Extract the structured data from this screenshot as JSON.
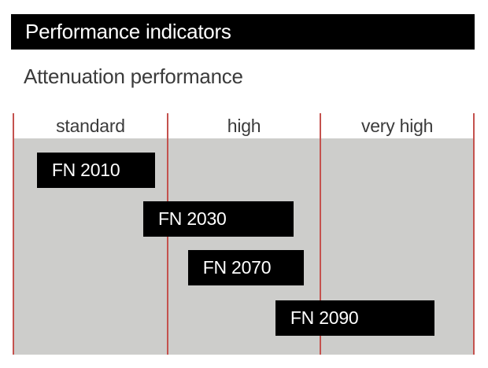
{
  "header": {
    "title": "Performance indicators"
  },
  "section": {
    "title": "Attenuation performance"
  },
  "chart_data": {
    "type": "bar",
    "subtype": "horizontal-qualitative-range",
    "title": "Attenuation performance",
    "x_axis": {
      "bands": [
        "standard",
        "high",
        "very high"
      ],
      "band_boundaries_fraction": [
        0,
        0.335,
        0.667,
        1
      ]
    },
    "bars": [
      {
        "label": "FN 2010",
        "range_fraction": [
          0.051,
          0.308
        ],
        "bands_covered": [
          "standard"
        ]
      },
      {
        "label": "FN 2030",
        "range_fraction": [
          0.282,
          0.609
        ],
        "bands_covered": [
          "standard",
          "high"
        ]
      },
      {
        "label": "FN 2070",
        "range_fraction": [
          0.379,
          0.631
        ],
        "bands_covered": [
          "high"
        ]
      },
      {
        "label": "FN 2090",
        "range_fraction": [
          0.569,
          0.915
        ],
        "bands_covered": [
          "high",
          "very high"
        ]
      }
    ],
    "layout_hints": {
      "legend": "none",
      "grid": "vertical band dividers only"
    },
    "colors": {
      "bar": "#000000",
      "bar_text": "#ffffff",
      "plot_background": "#CDCDCB",
      "grid_line": "#C4524E",
      "label_text": "#3B3B3B",
      "header_bg": "#000000",
      "header_text": "#ffffff"
    }
  }
}
